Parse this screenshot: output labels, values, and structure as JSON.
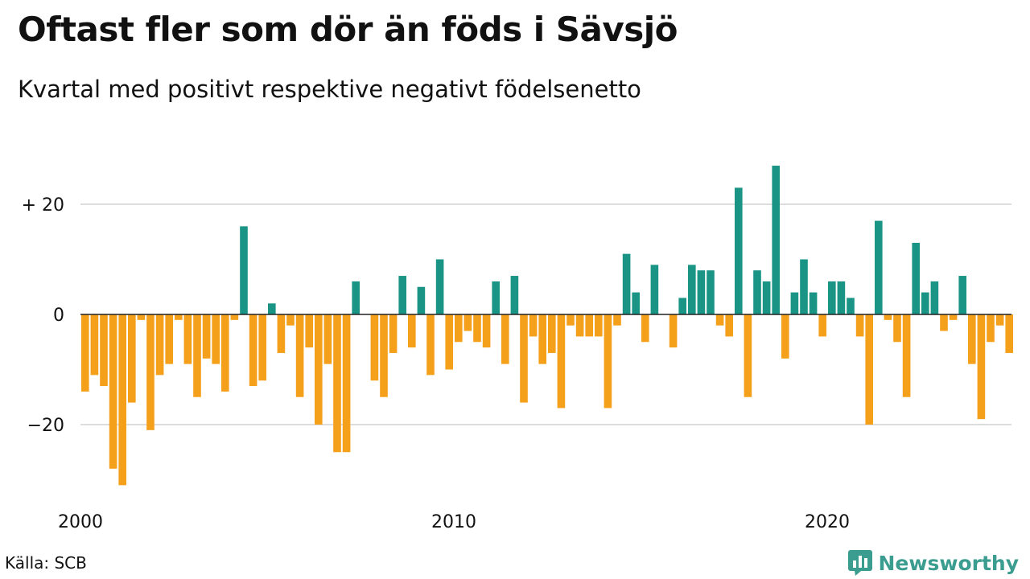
{
  "title": "Oftast fler som dör än föds i Sävsjö",
  "subtitle": "Kvartal med positivt respektive negativt födelsenetto",
  "source": "Källa: SCB",
  "brand": {
    "name": "Newsworthy",
    "icon": "bar-chart-speech-bubble-icon"
  },
  "colors": {
    "positive": "#1a9485",
    "negative": "#f5a01a",
    "grid": "#dddddd",
    "axis": "#222222",
    "brand": "#3a9d8f"
  },
  "chart_data": {
    "type": "bar",
    "x_start": "2000 Q1",
    "categories": [
      "2000 Q1",
      "2000 Q2",
      "2000 Q3",
      "2000 Q4",
      "2001 Q1",
      "2001 Q2",
      "2001 Q3",
      "2001 Q4",
      "2002 Q1",
      "2002 Q2",
      "2002 Q3",
      "2002 Q4",
      "2003 Q1",
      "2003 Q2",
      "2003 Q3",
      "2003 Q4",
      "2004 Q1",
      "2004 Q2",
      "2004 Q3",
      "2004 Q4",
      "2005 Q1",
      "2005 Q2",
      "2005 Q3",
      "2005 Q4",
      "2006 Q1",
      "2006 Q2",
      "2006 Q3",
      "2006 Q4",
      "2007 Q1",
      "2007 Q2",
      "2007 Q3",
      "2007 Q4",
      "2008 Q1",
      "2008 Q2",
      "2008 Q3",
      "2008 Q4",
      "2009 Q1",
      "2009 Q2",
      "2009 Q3",
      "2009 Q4",
      "2010 Q1",
      "2010 Q2",
      "2010 Q3",
      "2010 Q4",
      "2011 Q1",
      "2011 Q2",
      "2011 Q3",
      "2011 Q4",
      "2012 Q1",
      "2012 Q2",
      "2012 Q3",
      "2012 Q4",
      "2013 Q1",
      "2013 Q2",
      "2013 Q3",
      "2013 Q4",
      "2014 Q1",
      "2014 Q2",
      "2014 Q3",
      "2014 Q4",
      "2015 Q1",
      "2015 Q2",
      "2015 Q3",
      "2015 Q4",
      "2016 Q1",
      "2016 Q2",
      "2016 Q3",
      "2016 Q4",
      "2017 Q1",
      "2017 Q2",
      "2017 Q3",
      "2017 Q4",
      "2018 Q1",
      "2018 Q2",
      "2018 Q3",
      "2018 Q4",
      "2019 Q1",
      "2019 Q2",
      "2019 Q3",
      "2019 Q4",
      "2020 Q1",
      "2020 Q2",
      "2020 Q3",
      "2020 Q4",
      "2021 Q1",
      "2021 Q2",
      "2021 Q3",
      "2021 Q4",
      "2022 Q1",
      "2022 Q2",
      "2022 Q3",
      "2022 Q4",
      "2023 Q1",
      "2023 Q2",
      "2023 Q3",
      "2023 Q4",
      "2024 Q1",
      "2024 Q2",
      "2024 Q3",
      "2024 Q4"
    ],
    "values": [
      -14,
      -11,
      -13,
      -28,
      -31,
      -16,
      -1,
      -21,
      -11,
      -9,
      -1,
      -9,
      -15,
      -8,
      -9,
      -14,
      -1,
      16,
      -13,
      -12,
      2,
      -7,
      -2,
      -15,
      -6,
      -20,
      -9,
      -25,
      -25,
      6,
      0,
      -12,
      -15,
      -7,
      7,
      -6,
      5,
      -11,
      10,
      -10,
      -5,
      -3,
      -5,
      -6,
      6,
      -9,
      7,
      -16,
      -4,
      -9,
      -7,
      -17,
      -2,
      -4,
      -4,
      -4,
      -17,
      -2,
      11,
      4,
      -5,
      9,
      0,
      -6,
      3,
      9,
      8,
      8,
      -2,
      -4,
      23,
      -15,
      8,
      6,
      27,
      -8,
      4,
      10,
      4,
      -4,
      6,
      6,
      3,
      -4,
      -20,
      17,
      -1,
      -5,
      -15,
      13,
      4,
      6,
      -3,
      -1,
      7,
      -9,
      -19,
      -5,
      -2,
      -7
    ],
    "y_ticks": [
      {
        "value": 20,
        "label": "+ 20"
      },
      {
        "value": 0,
        "label": "0"
      },
      {
        "value": -20,
        "label": "−20"
      }
    ],
    "x_ticks": [
      {
        "label": "2000",
        "index": 0
      },
      {
        "label": "2010",
        "index": 40
      },
      {
        "label": "2020",
        "index": 80
      }
    ],
    "ylim": [
      -33,
      30
    ],
    "grid": true,
    "legend": "none"
  }
}
